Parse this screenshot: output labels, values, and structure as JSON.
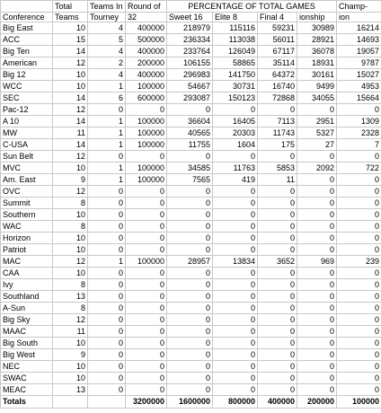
{
  "headers": {
    "banner": "PERCENTAGE OF TOTAL GAMES",
    "conference_blank": "",
    "total_teams_l1": "Total",
    "teams_in_tourney_l1": "Teams In",
    "round_of_32_l1": "Round of",
    "sweet16_l1": "",
    "elite8_l1": "",
    "final4_l1": "",
    "championship_l1": "Champ-",
    "champion_l1": "Champ-",
    "conference": "Conference",
    "total_teams_l2": "Teams",
    "teams_in_tourney_l2": "Tourney",
    "round_of_32_l2": "32",
    "sweet16": "Sweet 16",
    "elite8": "Elite 8",
    "final4": "Final 4",
    "championship_l2": "ionship",
    "champion_l2": "ion"
  },
  "rows": [
    {
      "conference": "Big East",
      "total": "10",
      "tourney": "4",
      "r32": "400000",
      "s16": "218979",
      "e8": "115116",
      "f4": "59231",
      "champ": "30989",
      "champion": "16214"
    },
    {
      "conference": "ACC",
      "total": "15",
      "tourney": "5",
      "r32": "500000",
      "s16": "236334",
      "e8": "113038",
      "f4": "56011",
      "champ": "28921",
      "champion": "14693"
    },
    {
      "conference": "Big Ten",
      "total": "14",
      "tourney": "4",
      "r32": "400000",
      "s16": "233764",
      "e8": "126049",
      "f4": "67117",
      "champ": "36078",
      "champion": "19057"
    },
    {
      "conference": "American",
      "total": "12",
      "tourney": "2",
      "r32": "200000",
      "s16": "106155",
      "e8": "58865",
      "f4": "35114",
      "champ": "18931",
      "champion": "9787"
    },
    {
      "conference": "Big 12",
      "total": "10",
      "tourney": "4",
      "r32": "400000",
      "s16": "296983",
      "e8": "141750",
      "f4": "64372",
      "champ": "30161",
      "champion": "15027"
    },
    {
      "conference": "WCC",
      "total": "10",
      "tourney": "1",
      "r32": "100000",
      "s16": "54667",
      "e8": "30731",
      "f4": "16740",
      "champ": "9499",
      "champion": "4953"
    },
    {
      "conference": "SEC",
      "total": "14",
      "tourney": "6",
      "r32": "600000",
      "s16": "293087",
      "e8": "150123",
      "f4": "72868",
      "champ": "34055",
      "champion": "15664"
    },
    {
      "conference": "Pac-12",
      "total": "12",
      "tourney": "0",
      "r32": "0",
      "s16": "0",
      "e8": "0",
      "f4": "0",
      "champ": "0",
      "champion": "0"
    },
    {
      "conference": "A 10",
      "total": "14",
      "tourney": "1",
      "r32": "100000",
      "s16": "36604",
      "e8": "16405",
      "f4": "7113",
      "champ": "2951",
      "champion": "1309"
    },
    {
      "conference": "MW",
      "total": "11",
      "tourney": "1",
      "r32": "100000",
      "s16": "40565",
      "e8": "20303",
      "f4": "11743",
      "champ": "5327",
      "champion": "2328"
    },
    {
      "conference": "C-USA",
      "total": "14",
      "tourney": "1",
      "r32": "100000",
      "s16": "11755",
      "e8": "1604",
      "f4": "175",
      "champ": "27",
      "champion": "7"
    },
    {
      "conference": "Sun Belt",
      "total": "12",
      "tourney": "0",
      "r32": "0",
      "s16": "0",
      "e8": "0",
      "f4": "0",
      "champ": "0",
      "champion": "0"
    },
    {
      "conference": "MVC",
      "total": "10",
      "tourney": "1",
      "r32": "100000",
      "s16": "34585",
      "e8": "11763",
      "f4": "5853",
      "champ": "2092",
      "champion": "722"
    },
    {
      "conference": "Am. East",
      "total": "9",
      "tourney": "1",
      "r32": "100000",
      "s16": "7565",
      "e8": "419",
      "f4": "11",
      "champ": "0",
      "champion": "0"
    },
    {
      "conference": "OVC",
      "total": "12",
      "tourney": "0",
      "r32": "0",
      "s16": "0",
      "e8": "0",
      "f4": "0",
      "champ": "0",
      "champion": "0"
    },
    {
      "conference": "Summit",
      "total": "8",
      "tourney": "0",
      "r32": "0",
      "s16": "0",
      "e8": "0",
      "f4": "0",
      "champ": "0",
      "champion": "0"
    },
    {
      "conference": "Southern",
      "total": "10",
      "tourney": "0",
      "r32": "0",
      "s16": "0",
      "e8": "0",
      "f4": "0",
      "champ": "0",
      "champion": "0"
    },
    {
      "conference": "WAC",
      "total": "8",
      "tourney": "0",
      "r32": "0",
      "s16": "0",
      "e8": "0",
      "f4": "0",
      "champ": "0",
      "champion": "0"
    },
    {
      "conference": "Horizon",
      "total": "10",
      "tourney": "0",
      "r32": "0",
      "s16": "0",
      "e8": "0",
      "f4": "0",
      "champ": "0",
      "champion": "0"
    },
    {
      "conference": "Patriot",
      "total": "10",
      "tourney": "0",
      "r32": "0",
      "s16": "0",
      "e8": "0",
      "f4": "0",
      "champ": "0",
      "champion": "0"
    },
    {
      "conference": "MAC",
      "total": "12",
      "tourney": "1",
      "r32": "100000",
      "s16": "28957",
      "e8": "13834",
      "f4": "3652",
      "champ": "969",
      "champion": "239"
    },
    {
      "conference": "CAA",
      "total": "10",
      "tourney": "0",
      "r32": "0",
      "s16": "0",
      "e8": "0",
      "f4": "0",
      "champ": "0",
      "champion": "0"
    },
    {
      "conference": "Ivy",
      "total": "8",
      "tourney": "0",
      "r32": "0",
      "s16": "0",
      "e8": "0",
      "f4": "0",
      "champ": "0",
      "champion": "0"
    },
    {
      "conference": "Southland",
      "total": "13",
      "tourney": "0",
      "r32": "0",
      "s16": "0",
      "e8": "0",
      "f4": "0",
      "champ": "0",
      "champion": "0"
    },
    {
      "conference": "A-Sun",
      "total": "8",
      "tourney": "0",
      "r32": "0",
      "s16": "0",
      "e8": "0",
      "f4": "0",
      "champ": "0",
      "champion": "0"
    },
    {
      "conference": "Big Sky",
      "total": "12",
      "tourney": "0",
      "r32": "0",
      "s16": "0",
      "e8": "0",
      "f4": "0",
      "champ": "0",
      "champion": "0"
    },
    {
      "conference": "MAAC",
      "total": "11",
      "tourney": "0",
      "r32": "0",
      "s16": "0",
      "e8": "0",
      "f4": "0",
      "champ": "0",
      "champion": "0"
    },
    {
      "conference": "Big South",
      "total": "10",
      "tourney": "0",
      "r32": "0",
      "s16": "0",
      "e8": "0",
      "f4": "0",
      "champ": "0",
      "champion": "0"
    },
    {
      "conference": "Big West",
      "total": "9",
      "tourney": "0",
      "r32": "0",
      "s16": "0",
      "e8": "0",
      "f4": "0",
      "champ": "0",
      "champion": "0"
    },
    {
      "conference": "NEC",
      "total": "10",
      "tourney": "0",
      "r32": "0",
      "s16": "0",
      "e8": "0",
      "f4": "0",
      "champ": "0",
      "champion": "0"
    },
    {
      "conference": "SWAC",
      "total": "10",
      "tourney": "0",
      "r32": "0",
      "s16": "0",
      "e8": "0",
      "f4": "0",
      "champ": "0",
      "champion": "0"
    },
    {
      "conference": "MEAC",
      "total": "13",
      "tourney": "0",
      "r32": "0",
      "s16": "0",
      "e8": "0",
      "f4": "0",
      "champ": "0",
      "champion": "0"
    }
  ],
  "totals": {
    "label": "Totals",
    "total": "",
    "tourney": "",
    "r32": "3200000",
    "s16": "1600000",
    "e8": "800000",
    "f4": "400000",
    "champ": "200000",
    "champion": "100000"
  }
}
